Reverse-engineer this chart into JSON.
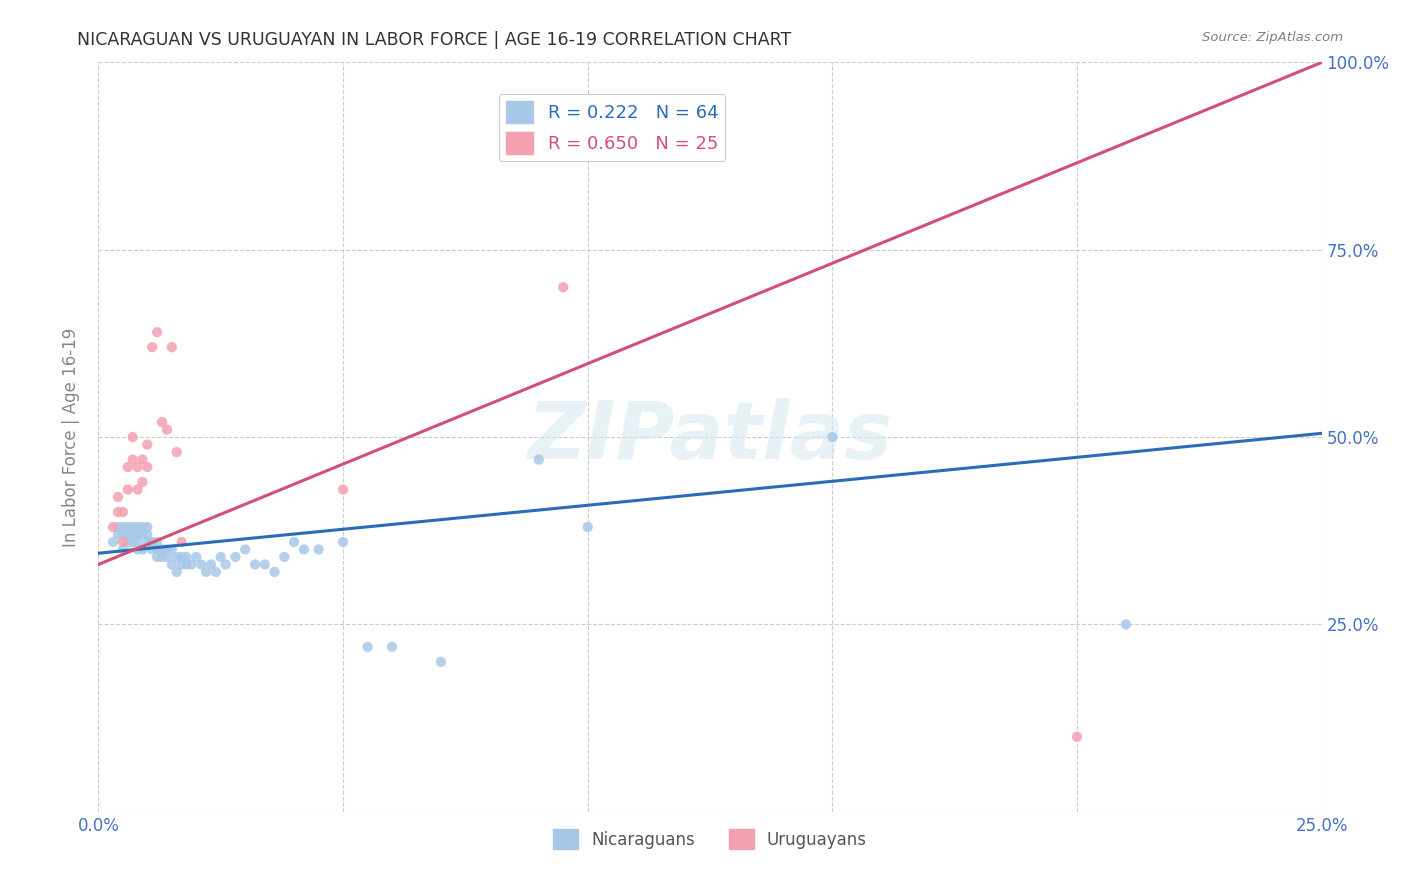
{
  "title": "NICARAGUAN VS URUGUAYAN IN LABOR FORCE | AGE 16-19 CORRELATION CHART",
  "source": "Source: ZipAtlas.com",
  "ylabel": "In Labor Force | Age 16-19",
  "xlim": [
    0.0,
    0.25
  ],
  "ylim": [
    0.0,
    1.0
  ],
  "xticks": [
    0.0,
    0.05,
    0.1,
    0.15,
    0.2,
    0.25
  ],
  "yticks": [
    0.0,
    0.25,
    0.5,
    0.75,
    1.0
  ],
  "xticklabels": [
    "0.0%",
    "",
    "",
    "",
    "",
    "25.0%"
  ],
  "yticklabels_left": [
    "",
    "",
    "",
    "",
    ""
  ],
  "yticklabels_right": [
    "",
    "25.0%",
    "50.0%",
    "75.0%",
    "100.0%"
  ],
  "blue_color": "#a8c8e8",
  "pink_color": "#f4a0b0",
  "blue_line_color": "#2b6cb8",
  "pink_line_color": "#d45070",
  "legend_blue_r": "R = 0.222",
  "legend_blue_n": "N = 64",
  "legend_pink_r": "R = 0.650",
  "legend_pink_n": "N = 25",
  "watermark_text": "ZIPatlas",
  "blue_scatter_x": [
    0.003,
    0.004,
    0.004,
    0.005,
    0.005,
    0.005,
    0.006,
    0.006,
    0.006,
    0.007,
    0.007,
    0.007,
    0.008,
    0.008,
    0.008,
    0.008,
    0.009,
    0.009,
    0.009,
    0.01,
    0.01,
    0.01,
    0.011,
    0.011,
    0.012,
    0.012,
    0.012,
    0.013,
    0.013,
    0.014,
    0.014,
    0.015,
    0.015,
    0.016,
    0.016,
    0.017,
    0.017,
    0.018,
    0.018,
    0.019,
    0.02,
    0.021,
    0.022,
    0.023,
    0.024,
    0.025,
    0.026,
    0.028,
    0.03,
    0.032,
    0.034,
    0.036,
    0.038,
    0.04,
    0.042,
    0.045,
    0.05,
    0.055,
    0.06,
    0.07,
    0.09,
    0.1,
    0.15,
    0.21
  ],
  "blue_scatter_y": [
    0.36,
    0.37,
    0.38,
    0.35,
    0.37,
    0.38,
    0.36,
    0.37,
    0.38,
    0.36,
    0.37,
    0.38,
    0.35,
    0.37,
    0.38,
    0.36,
    0.35,
    0.37,
    0.38,
    0.36,
    0.37,
    0.38,
    0.35,
    0.36,
    0.34,
    0.35,
    0.36,
    0.34,
    0.35,
    0.34,
    0.35,
    0.33,
    0.35,
    0.32,
    0.34,
    0.33,
    0.34,
    0.33,
    0.34,
    0.33,
    0.34,
    0.33,
    0.32,
    0.33,
    0.32,
    0.34,
    0.33,
    0.34,
    0.35,
    0.33,
    0.33,
    0.32,
    0.34,
    0.36,
    0.35,
    0.35,
    0.36,
    0.22,
    0.22,
    0.2,
    0.47,
    0.38,
    0.5,
    0.25
  ],
  "pink_scatter_x": [
    0.003,
    0.004,
    0.004,
    0.005,
    0.005,
    0.006,
    0.006,
    0.007,
    0.007,
    0.008,
    0.008,
    0.009,
    0.009,
    0.01,
    0.01,
    0.011,
    0.012,
    0.013,
    0.014,
    0.015,
    0.016,
    0.017,
    0.05,
    0.095,
    0.2
  ],
  "pink_scatter_y": [
    0.38,
    0.4,
    0.42,
    0.36,
    0.4,
    0.43,
    0.46,
    0.47,
    0.5,
    0.43,
    0.46,
    0.44,
    0.47,
    0.46,
    0.49,
    0.62,
    0.64,
    0.52,
    0.51,
    0.62,
    0.48,
    0.36,
    0.43,
    0.7,
    0.1
  ],
  "blue_line_x": [
    0.0,
    0.25
  ],
  "blue_line_y": [
    0.345,
    0.505
  ],
  "pink_line_x": [
    0.0,
    0.25
  ],
  "pink_line_y": [
    0.33,
    1.0
  ],
  "background_color": "#ffffff",
  "grid_color": "#cccccc",
  "tick_color": "#4472c4",
  "title_color": "#333333",
  "source_color": "#808080"
}
